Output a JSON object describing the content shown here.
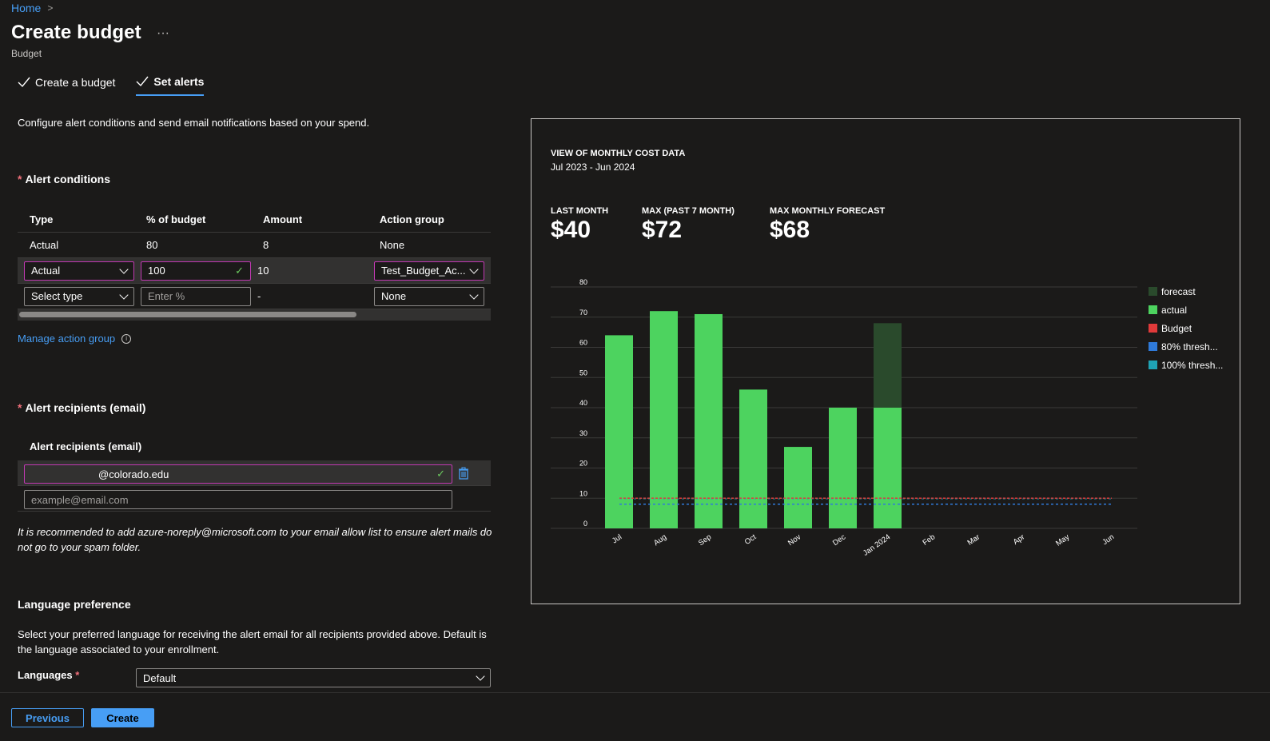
{
  "breadcrumb": {
    "home": "Home"
  },
  "header": {
    "title": "Create budget",
    "more": "···",
    "subtitle": "Budget"
  },
  "tabs": [
    {
      "label": "Create a budget"
    },
    {
      "label": "Set alerts"
    }
  ],
  "description": "Configure alert conditions and send email notifications based on your spend.",
  "alert_conditions": {
    "title": "Alert conditions",
    "columns": [
      "Type",
      "% of budget",
      "Amount",
      "Action group"
    ],
    "row1": {
      "type": "Actual",
      "percent": "80",
      "amount": "8",
      "action_group": "None"
    },
    "row2": {
      "type": "Actual",
      "percent": "100",
      "amount": "10",
      "action_group": "Test_Budget_Ac..."
    },
    "row3": {
      "type_placeholder": "Select type",
      "percent_placeholder": "Enter %",
      "amount": "-",
      "action_group": "None"
    }
  },
  "manage_action_group": "Manage action group",
  "recipients": {
    "title": "Alert recipients (email)",
    "column": "Alert recipients (email)",
    "email": "@colorado.edu",
    "placeholder": "example@email.com"
  },
  "note": "It is recommended to add azure-noreply@microsoft.com to your email allow list to ensure alert mails do not go to your spam folder.",
  "language": {
    "title": "Language preference",
    "description": "Select your preferred language for receiving the alert email for all recipients provided above. Default is the language associated to your enrollment.",
    "label": "Languages",
    "value": "Default"
  },
  "footer": {
    "previous": "Previous",
    "create": "Create"
  },
  "kpis": {
    "last_month_label": "LAST MONTH",
    "last_month_value": "$40",
    "max_label": "MAX (PAST 7 MONTH)",
    "max_value": "$72",
    "forecast_label": "MAX MONTHLY FORECAST",
    "forecast_value": "$68"
  },
  "colors": {
    "actual": "#4dd35f",
    "forecast": "#2a4a2c",
    "budget": "#e03a3a",
    "thresh80": "#2f7ad9",
    "thresh100": "#1fa3b5",
    "accent": "#479ef5"
  },
  "chart_data": {
    "type": "bar",
    "title": "VIEW OF MONTHLY COST DATA",
    "subtitle": "Jul 2023 - Jun 2024",
    "categories": [
      "Jul",
      "Aug",
      "Sep",
      "Oct",
      "Nov",
      "Dec",
      "Jan 2024",
      "Feb",
      "Mar",
      "Apr",
      "May",
      "Jun"
    ],
    "series": [
      {
        "name": "actual",
        "values": [
          64,
          72,
          71,
          46,
          27,
          40,
          40,
          0,
          0,
          0,
          0,
          0
        ]
      },
      {
        "name": "forecast",
        "values": [
          null,
          null,
          null,
          null,
          null,
          null,
          68,
          null,
          null,
          null,
          null,
          null
        ]
      }
    ],
    "budget": 10,
    "thresholds": [
      {
        "name": "80% thresh...",
        "value": 8
      },
      {
        "name": "100% thresh...",
        "value": 10
      }
    ],
    "legend": [
      "forecast",
      "actual",
      "Budget",
      "80% thresh...",
      "100% thresh..."
    ],
    "yticks": [
      0,
      10,
      20,
      30,
      40,
      50,
      60,
      70,
      80
    ],
    "ylim": [
      0,
      80
    ],
    "legend_position": "right"
  }
}
